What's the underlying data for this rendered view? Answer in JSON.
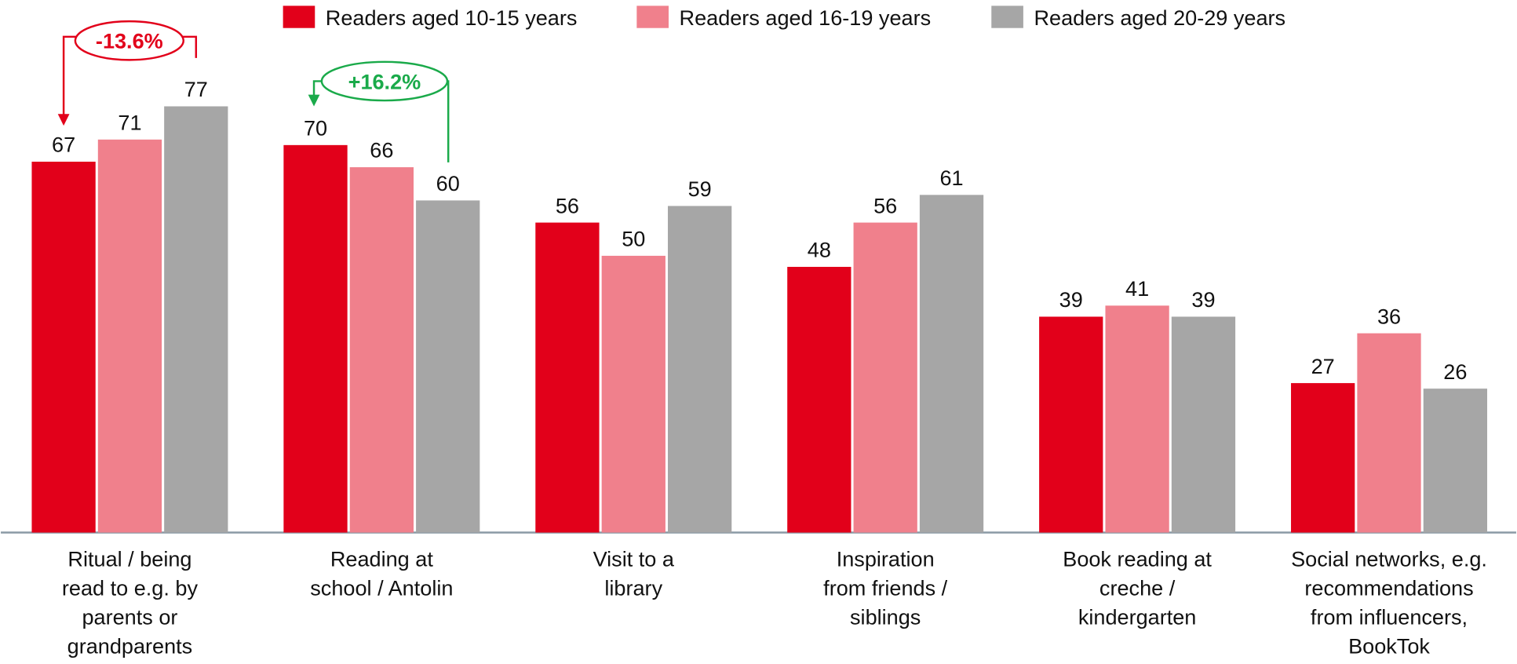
{
  "chart_data": {
    "type": "bar",
    "categories": [
      "Ritual / being read to e.g. by parents or grandparents",
      "Reading at school / Antolin",
      "Visit to a library",
      "Inspiration from friends / siblings",
      "Book reading at creche / kindergarten",
      "Social networks, e.g. recommendations from influencers, BookTok"
    ],
    "category_lines": [
      [
        "Ritual / being",
        "read to e.g. by",
        "parents or",
        "grandparents"
      ],
      [
        "Reading at",
        "school / Antolin"
      ],
      [
        "Visit to a",
        "library"
      ],
      [
        "Inspiration",
        "from friends /",
        "siblings"
      ],
      [
        "Book reading at",
        "creche /",
        "kindergarten"
      ],
      [
        "Social networks, e.g.",
        "recommendations",
        "from influencers,",
        "BookTok"
      ]
    ],
    "series": [
      {
        "name": "Readers aged 10-15 years",
        "color": "#e2001a",
        "values": [
          67,
          70,
          56,
          48,
          39,
          27
        ]
      },
      {
        "name": "Readers aged 16-19 years",
        "color": "#f0808c",
        "values": [
          71,
          66,
          50,
          56,
          41,
          36
        ]
      },
      {
        "name": "Readers aged 20-29 years",
        "color": "#a6a6a6",
        "values": [
          77,
          60,
          59,
          61,
          39,
          26
        ]
      }
    ],
    "annotations": [
      {
        "text": "-13.6%"
      },
      {
        "text": "+16.2%"
      }
    ],
    "legend": "top"
  }
}
